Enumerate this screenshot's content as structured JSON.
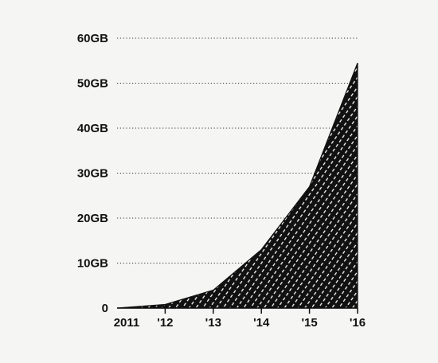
{
  "chart_data": {
    "type": "area",
    "title": "",
    "xlabel": "",
    "ylabel": "",
    "x": [
      2011,
      2011.5,
      2012,
      2013,
      2014,
      2015,
      2016
    ],
    "values": [
      0,
      0.4,
      0.8,
      4,
      13,
      27,
      54.5
    ],
    "xlim": [
      2011,
      2016
    ],
    "ylim": [
      0,
      60
    ],
    "x_ticks": [
      {
        "value": 2011,
        "label": "2011"
      },
      {
        "value": 2012,
        "label": "'12"
      },
      {
        "value": 2013,
        "label": "'13"
      },
      {
        "value": 2014,
        "label": "'14"
      },
      {
        "value": 2015,
        "label": "'15"
      },
      {
        "value": 2016,
        "label": "'16"
      }
    ],
    "y_ticks": [
      {
        "value": 0,
        "label": "0"
      },
      {
        "value": 10,
        "label": "10GB"
      },
      {
        "value": 20,
        "label": "20GB"
      },
      {
        "value": 30,
        "label": "30GB"
      },
      {
        "value": 40,
        "label": "40GB"
      },
      {
        "value": 50,
        "label": "50GB"
      },
      {
        "value": 60,
        "label": "60GB"
      }
    ],
    "grid": "horizontal dotted",
    "fill": "hatched",
    "colors": {
      "background": "#f5f5f3",
      "area": "#111111",
      "hatch": "#ffffff",
      "text": "#111111",
      "grid": "#333333"
    }
  }
}
